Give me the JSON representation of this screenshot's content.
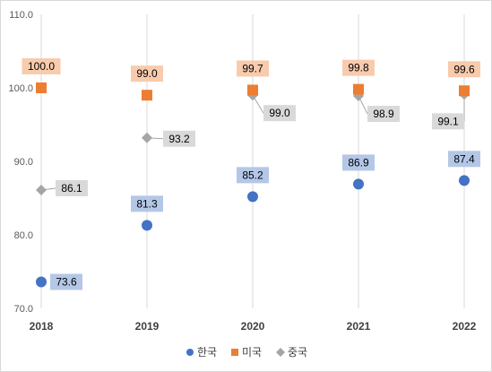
{
  "chart_data": {
    "type": "scatter",
    "title": "",
    "xlabel": "",
    "ylabel": "",
    "categories": [
      "2018",
      "2019",
      "2020",
      "2021",
      "2022"
    ],
    "ylim": [
      70,
      110
    ],
    "yticks": [
      "70.0",
      "80.0",
      "90.0",
      "100.0",
      "110.0"
    ],
    "grid": "vertical",
    "legend_position": "bottom",
    "series": [
      {
        "name": "한국",
        "marker": "circle",
        "color": "#4472C4",
        "label_bg": "#B4C7E7",
        "values": [
          73.6,
          81.3,
          85.2,
          86.9,
          87.4
        ],
        "labels": [
          "73.6",
          "81.3",
          "85.2",
          "86.9",
          "87.4"
        ]
      },
      {
        "name": "미국",
        "marker": "square",
        "color": "#ED7D31",
        "label_bg": "#F8CBAD",
        "values": [
          100.0,
          99.0,
          99.7,
          99.8,
          99.6
        ],
        "labels": [
          "100.0",
          "99.0",
          "99.7",
          "99.8",
          "99.6"
        ]
      },
      {
        "name": "중국",
        "marker": "diamond",
        "color": "#A5A5A5",
        "label_bg": "#D9D9D9",
        "values": [
          86.1,
          93.2,
          99.0,
          98.9,
          99.1
        ],
        "labels": [
          "86.1",
          "93.2",
          "99.0",
          "98.9",
          "99.1"
        ]
      }
    ]
  }
}
